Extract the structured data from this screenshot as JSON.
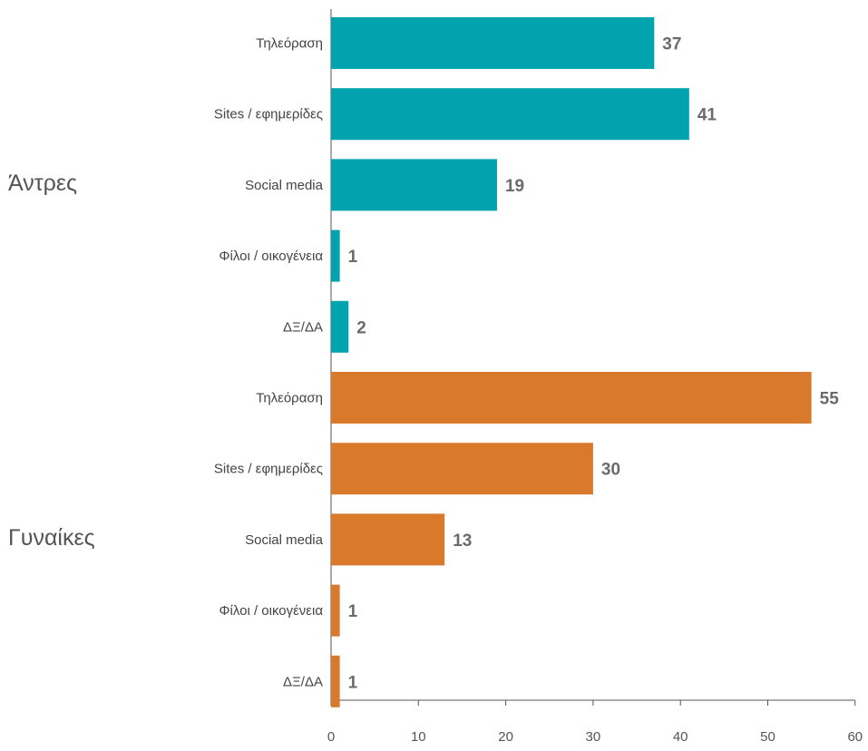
{
  "chart_data": {
    "type": "bar",
    "orientation": "horizontal",
    "title": "",
    "xlabel": "",
    "ylabel": "",
    "xlim": [
      0,
      60
    ],
    "xticks": [
      0,
      10,
      20,
      30,
      40,
      50,
      60
    ],
    "grid": false,
    "legend": "none",
    "groups": [
      {
        "name": "Άντρες",
        "color": "#00a3ae",
        "categories": [
          "Τηλεόραση",
          "Sites / εφημερίδες",
          "Social media",
          "Φίλοι / οικογένεια",
          "ΔΞ/ΔΑ"
        ],
        "values": [
          37,
          41,
          19,
          1,
          2
        ]
      },
      {
        "name": "Γυναίκες",
        "color": "#d9792b",
        "categories": [
          "Τηλεόραση",
          "Sites / εφημερίδες",
          "Social media",
          "Φίλοι / οικογένεια",
          "ΔΞ/ΔΑ"
        ],
        "values": [
          55,
          30,
          13,
          1,
          1
        ]
      }
    ]
  }
}
